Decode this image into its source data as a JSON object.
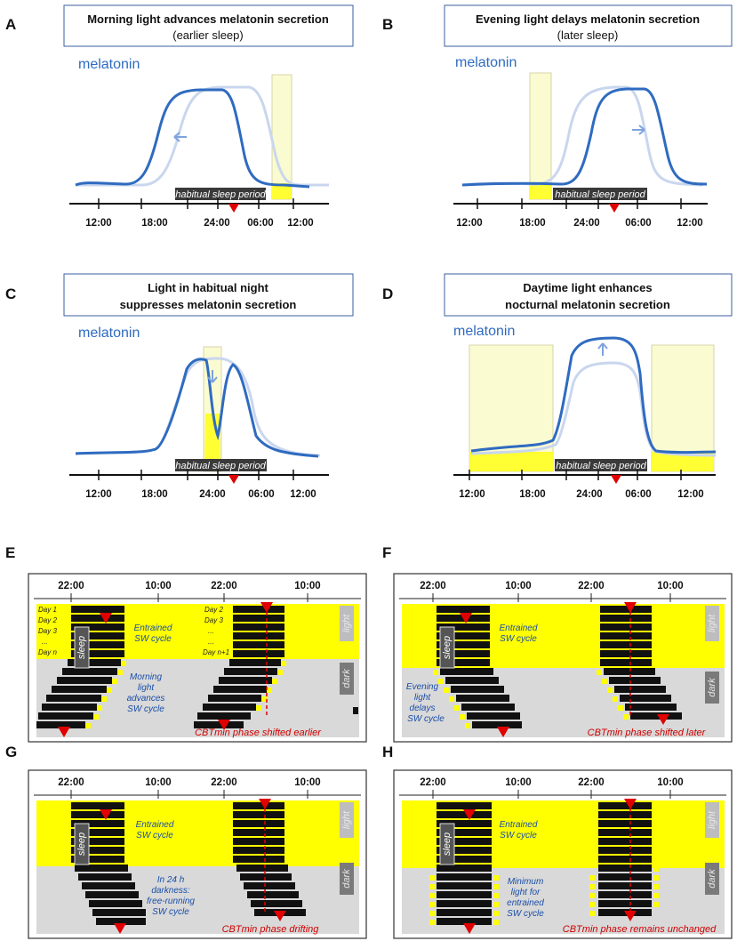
{
  "top_panels": [
    {
      "id": "A",
      "title_line1": "Morning light advances melatonin secretion",
      "title_line2": "(earlier sleep)",
      "curve_label": "melatonin",
      "sleep_label": "habitual sleep period",
      "ticks": [
        "12:00",
        "18:00",
        "24:00",
        "06:00",
        "12:00"
      ]
    },
    {
      "id": "B",
      "title_line1": "Evening light delays melatonin secretion",
      "title_line2": "(later sleep)",
      "curve_label": "melatonin",
      "sleep_label": "habitual sleep period",
      "ticks": [
        "12:00",
        "18:00",
        "24:00",
        "06:00",
        "12:00"
      ]
    },
    {
      "id": "C",
      "title_line1": "Light in habitual night",
      "title_line2": "suppresses melatonin secretion",
      "curve_label": "melatonin",
      "sleep_label": "habitual sleep period",
      "ticks": [
        "12:00",
        "18:00",
        "24:00",
        "06:00",
        "12:00"
      ]
    },
    {
      "id": "D",
      "title_line1": "Daytime light enhances",
      "title_line2": "nocturnal melatonin secretion",
      "curve_label": "melatonin",
      "sleep_label": "habitual sleep period",
      "ticks": [
        "12:00",
        "18:00",
        "24:00",
        "06:00",
        "12:00"
      ]
    }
  ],
  "bottom_panels": [
    {
      "id": "E",
      "ticks": [
        "22:00",
        "10:00",
        "22:00",
        "10:00"
      ],
      "sleep": "sleep",
      "light": "light",
      "dark": "dark",
      "entrained_line1": "Entrained",
      "entrained_line2": "SW cycle",
      "days_left": [
        "Day 1",
        "Day 2",
        "Day 3",
        "...",
        "Day n"
      ],
      "days_right": [
        "Day 2",
        "Day 3",
        "...",
        "...",
        "Day n+1"
      ],
      "note_lines": [
        "Morning",
        "light",
        "advances",
        "SW cycle"
      ],
      "cbt": "CBTmin phase shifted earlier"
    },
    {
      "id": "F",
      "ticks": [
        "22:00",
        "10:00",
        "22:00",
        "10:00"
      ],
      "sleep": "sleep",
      "light": "light",
      "dark": "dark",
      "entrained_line1": "Entrained",
      "entrained_line2": "SW cycle",
      "note_lines": [
        "Evening",
        "light",
        "delays",
        "SW cycle"
      ],
      "cbt": "CBTmin phase shifted later"
    },
    {
      "id": "G",
      "ticks": [
        "22:00",
        "10:00",
        "22:00",
        "10:00"
      ],
      "sleep": "sleep",
      "light": "light",
      "dark": "dark",
      "entrained_line1": "Entrained",
      "entrained_line2": "SW cycle",
      "note_lines": [
        "In 24 h",
        "darkness:",
        "free-running",
        "SW cycle"
      ],
      "cbt": "CBTmin phase drifting"
    },
    {
      "id": "H",
      "ticks": [
        "22:00",
        "10:00",
        "22:00",
        "10:00"
      ],
      "sleep": "sleep",
      "light": "light",
      "dark": "dark",
      "entrained_line1": "Entrained",
      "entrained_line2": "SW cycle",
      "note_lines": [
        "Minimum",
        "light for",
        "entrained",
        "SW cycle"
      ],
      "cbt": "CBTmin phase remains unchanged"
    }
  ],
  "colors": {
    "melatonin": "#2f6bc0",
    "melatonin_faded": "#c9d6ee",
    "light_yellow": "#ffff00",
    "pale_yellow": "#fbfbd2",
    "dark_gray": "#d9d9d9",
    "marker_red": "#e00000"
  }
}
